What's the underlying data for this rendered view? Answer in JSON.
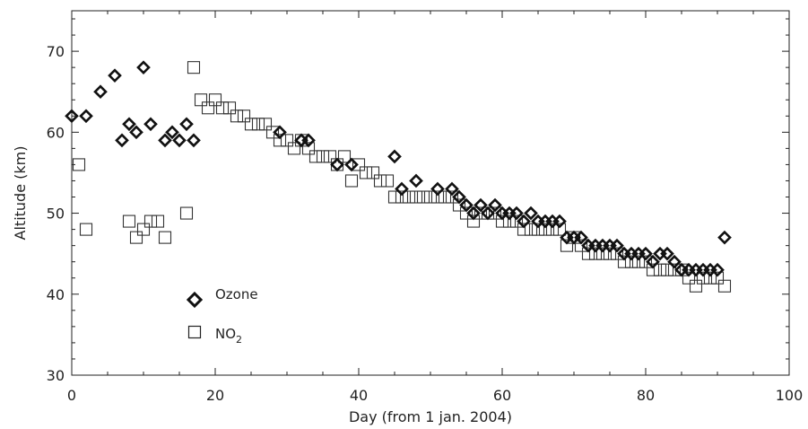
{
  "chart_data": {
    "type": "scatter",
    "xlabel": "Day (from 1 jan. 2004)",
    "ylabel": "Altitude (km)",
    "xlim": [
      0,
      100
    ],
    "ylim": [
      30,
      75
    ],
    "xticks": [
      "0",
      "20",
      "40",
      "60",
      "80",
      "100"
    ],
    "yticks": [
      "30",
      "40",
      "50",
      "60",
      "70"
    ],
    "grid": false,
    "legend_position": "lower-left",
    "series": [
      {
        "name": "Ozone",
        "marker": "diamond",
        "color": "#111111",
        "points": [
          [
            0,
            62
          ],
          [
            2,
            62
          ],
          [
            4,
            65
          ],
          [
            6,
            67
          ],
          [
            7,
            59
          ],
          [
            8,
            61
          ],
          [
            9,
            60
          ],
          [
            10,
            68
          ],
          [
            11,
            61
          ],
          [
            13,
            59
          ],
          [
            14,
            60
          ],
          [
            15,
            59
          ],
          [
            16,
            61
          ],
          [
            17,
            59
          ],
          [
            29,
            60
          ],
          [
            32,
            59
          ],
          [
            33,
            59
          ],
          [
            37,
            56
          ],
          [
            39,
            56
          ],
          [
            45,
            57
          ],
          [
            46,
            53
          ],
          [
            48,
            54
          ],
          [
            51,
            53
          ],
          [
            53,
            53
          ],
          [
            54,
            52
          ],
          [
            55,
            51
          ],
          [
            56,
            50
          ],
          [
            57,
            51
          ],
          [
            58,
            50
          ],
          [
            59,
            51
          ],
          [
            60,
            50
          ],
          [
            61,
            50
          ],
          [
            62,
            50
          ],
          [
            63,
            49
          ],
          [
            64,
            50
          ],
          [
            65,
            49
          ],
          [
            66,
            49
          ],
          [
            67,
            49
          ],
          [
            68,
            49
          ],
          [
            69,
            47
          ],
          [
            70,
            47
          ],
          [
            71,
            47
          ],
          [
            72,
            46
          ],
          [
            73,
            46
          ],
          [
            74,
            46
          ],
          [
            75,
            46
          ],
          [
            76,
            46
          ],
          [
            77,
            45
          ],
          [
            78,
            45
          ],
          [
            79,
            45
          ],
          [
            80,
            45
          ],
          [
            81,
            44
          ],
          [
            82,
            45
          ],
          [
            83,
            45
          ],
          [
            84,
            44
          ],
          [
            85,
            43
          ],
          [
            86,
            43
          ],
          [
            87,
            43
          ],
          [
            88,
            43
          ],
          [
            89,
            43
          ],
          [
            90,
            43
          ],
          [
            91,
            47
          ]
        ]
      },
      {
        "name": "NO2",
        "marker": "square",
        "color": "#111111",
        "points": [
          [
            1,
            56
          ],
          [
            2,
            48
          ],
          [
            8,
            49
          ],
          [
            9,
            47
          ],
          [
            10,
            48
          ],
          [
            11,
            49
          ],
          [
            12,
            49
          ],
          [
            13,
            47
          ],
          [
            16,
            50
          ],
          [
            17,
            68
          ],
          [
            18,
            64
          ],
          [
            19,
            63
          ],
          [
            20,
            64
          ],
          [
            21,
            63
          ],
          [
            22,
            63
          ],
          [
            23,
            62
          ],
          [
            24,
            62
          ],
          [
            25,
            61
          ],
          [
            26,
            61
          ],
          [
            27,
            61
          ],
          [
            28,
            60
          ],
          [
            29,
            59
          ],
          [
            30,
            59
          ],
          [
            31,
            58
          ],
          [
            32,
            59
          ],
          [
            33,
            58
          ],
          [
            34,
            57
          ],
          [
            35,
            57
          ],
          [
            36,
            57
          ],
          [
            37,
            56
          ],
          [
            38,
            57
          ],
          [
            39,
            54
          ],
          [
            40,
            56
          ],
          [
            41,
            55
          ],
          [
            42,
            55
          ],
          [
            43,
            54
          ],
          [
            44,
            54
          ],
          [
            45,
            52
          ],
          [
            46,
            52
          ],
          [
            47,
            52
          ],
          [
            48,
            52
          ],
          [
            49,
            52
          ],
          [
            50,
            52
          ],
          [
            51,
            52
          ],
          [
            52,
            52
          ],
          [
            53,
            52
          ],
          [
            54,
            51
          ],
          [
            55,
            50
          ],
          [
            56,
            49
          ],
          [
            57,
            50
          ],
          [
            58,
            50
          ],
          [
            59,
            50
          ],
          [
            60,
            49
          ],
          [
            61,
            49
          ],
          [
            62,
            49
          ],
          [
            63,
            48
          ],
          [
            64,
            48
          ],
          [
            65,
            48
          ],
          [
            66,
            48
          ],
          [
            67,
            48
          ],
          [
            68,
            48
          ],
          [
            69,
            46
          ],
          [
            70,
            47
          ],
          [
            71,
            46
          ],
          [
            72,
            45
          ],
          [
            73,
            45
          ],
          [
            74,
            45
          ],
          [
            75,
            45
          ],
          [
            76,
            45
          ],
          [
            77,
            44
          ],
          [
            78,
            44
          ],
          [
            79,
            44
          ],
          [
            80,
            44
          ],
          [
            81,
            43
          ],
          [
            82,
            43
          ],
          [
            83,
            43
          ],
          [
            84,
            43
          ],
          [
            85,
            43
          ],
          [
            86,
            42
          ],
          [
            87,
            41
          ],
          [
            88,
            42
          ],
          [
            89,
            42
          ],
          [
            90,
            42
          ],
          [
            91,
            41
          ]
        ]
      }
    ],
    "legend": [
      {
        "label": "Ozone",
        "marker": "diamond"
      },
      {
        "label": "NO",
        "subscript": "2",
        "marker": "square"
      }
    ]
  }
}
